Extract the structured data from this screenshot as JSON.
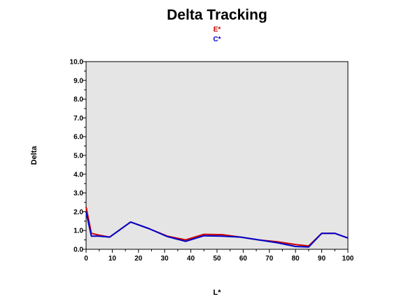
{
  "chart_data": {
    "type": "line",
    "title": "Delta Tracking",
    "xlabel": "L*",
    "ylabel": "Delta",
    "xlim": [
      0,
      100
    ],
    "ylim": [
      0,
      10
    ],
    "x_ticks": [
      "0",
      "10",
      "20",
      "30",
      "40",
      "50",
      "60",
      "70",
      "80",
      "90",
      "100"
    ],
    "y_ticks": [
      "0.0",
      "1.0",
      "2.0",
      "3.0",
      "4.0",
      "5.0",
      "6.0",
      "7.0",
      "8.0",
      "9.0",
      "10.0"
    ],
    "grid": false,
    "legend_position": "top-center",
    "plot_background": "#e5e5e5",
    "series": [
      {
        "name": "E*",
        "color": "#cc0000",
        "x": [
          0,
          2,
          5,
          9,
          17,
          24,
          31,
          38,
          45,
          52,
          59,
          66,
          73,
          80,
          85,
          90,
          95,
          100
        ],
        "y": [
          2.25,
          0.85,
          0.75,
          0.65,
          1.45,
          1.1,
          0.7,
          0.5,
          0.8,
          0.78,
          0.65,
          0.5,
          0.4,
          0.25,
          0.18,
          0.85,
          0.85,
          0.6
        ]
      },
      {
        "name": "C*",
        "color": "#0000cc",
        "x": [
          0,
          2,
          5,
          9,
          17,
          24,
          31,
          38,
          45,
          52,
          59,
          66,
          73,
          80,
          85,
          90,
          95,
          100
        ],
        "y": [
          2.0,
          0.7,
          0.7,
          0.65,
          1.45,
          1.1,
          0.68,
          0.42,
          0.72,
          0.7,
          0.65,
          0.5,
          0.35,
          0.15,
          0.12,
          0.85,
          0.85,
          0.6
        ]
      }
    ]
  }
}
